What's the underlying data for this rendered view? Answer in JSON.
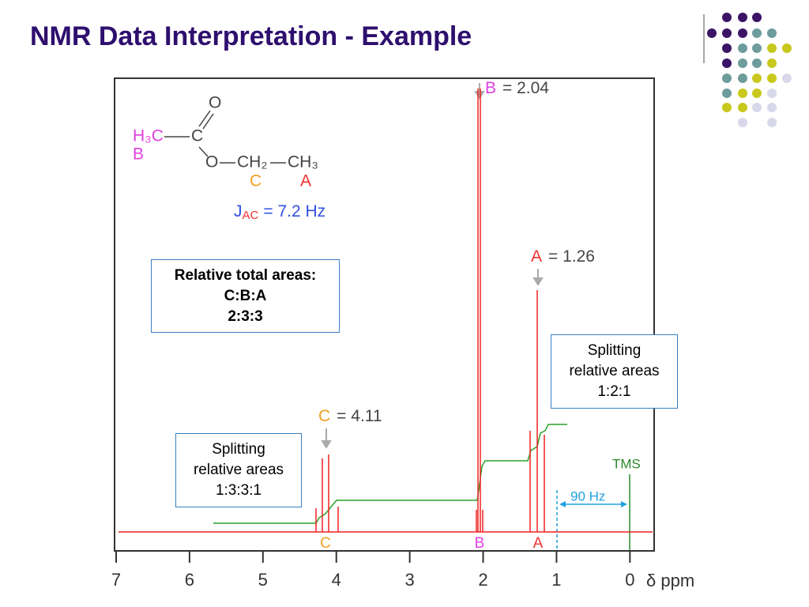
{
  "slide": {
    "title": "NMR Data Interpretation - Example",
    "total_box": {
      "lines": [
        "Relative total areas:",
        "C:B:A",
        "2:3:3"
      ]
    },
    "split_a_box": {
      "lines": [
        "Splitting",
        "relative areas",
        "1:2:1"
      ]
    },
    "split_c_box": {
      "lines": [
        "Splitting",
        "relative areas",
        "1:3:3:1"
      ]
    }
  },
  "chart_data": {
    "type": "nmr-spectrum",
    "molecule": {
      "methyl_b": "H₃C",
      "carbonyl": "C",
      "oxo": "O",
      "ester": "O",
      "methylene": "CH₂",
      "methyl_a": "CH₃",
      "label_b": "B",
      "label_c": "C",
      "label_a": "A"
    },
    "coupling": {
      "symbol": "J",
      "subscript": "AC",
      "text": "= 7.2 Hz"
    },
    "annotations": {
      "peak_b": {
        "letter": "B",
        "text": "= 2.04"
      },
      "peak_a": {
        "letter": "A",
        "text": "= 1.26"
      },
      "peak_c": {
        "letter": "C",
        "text": "= 4.11"
      },
      "tms": "TMS",
      "width": "90 Hz"
    },
    "peak_letters": [
      "C",
      "B",
      "A"
    ],
    "x_label": "δ ppm",
    "xlim": [
      7,
      -0.33
    ],
    "xticks": [
      7,
      6,
      5,
      4,
      3,
      2,
      1,
      0
    ]
  }
}
